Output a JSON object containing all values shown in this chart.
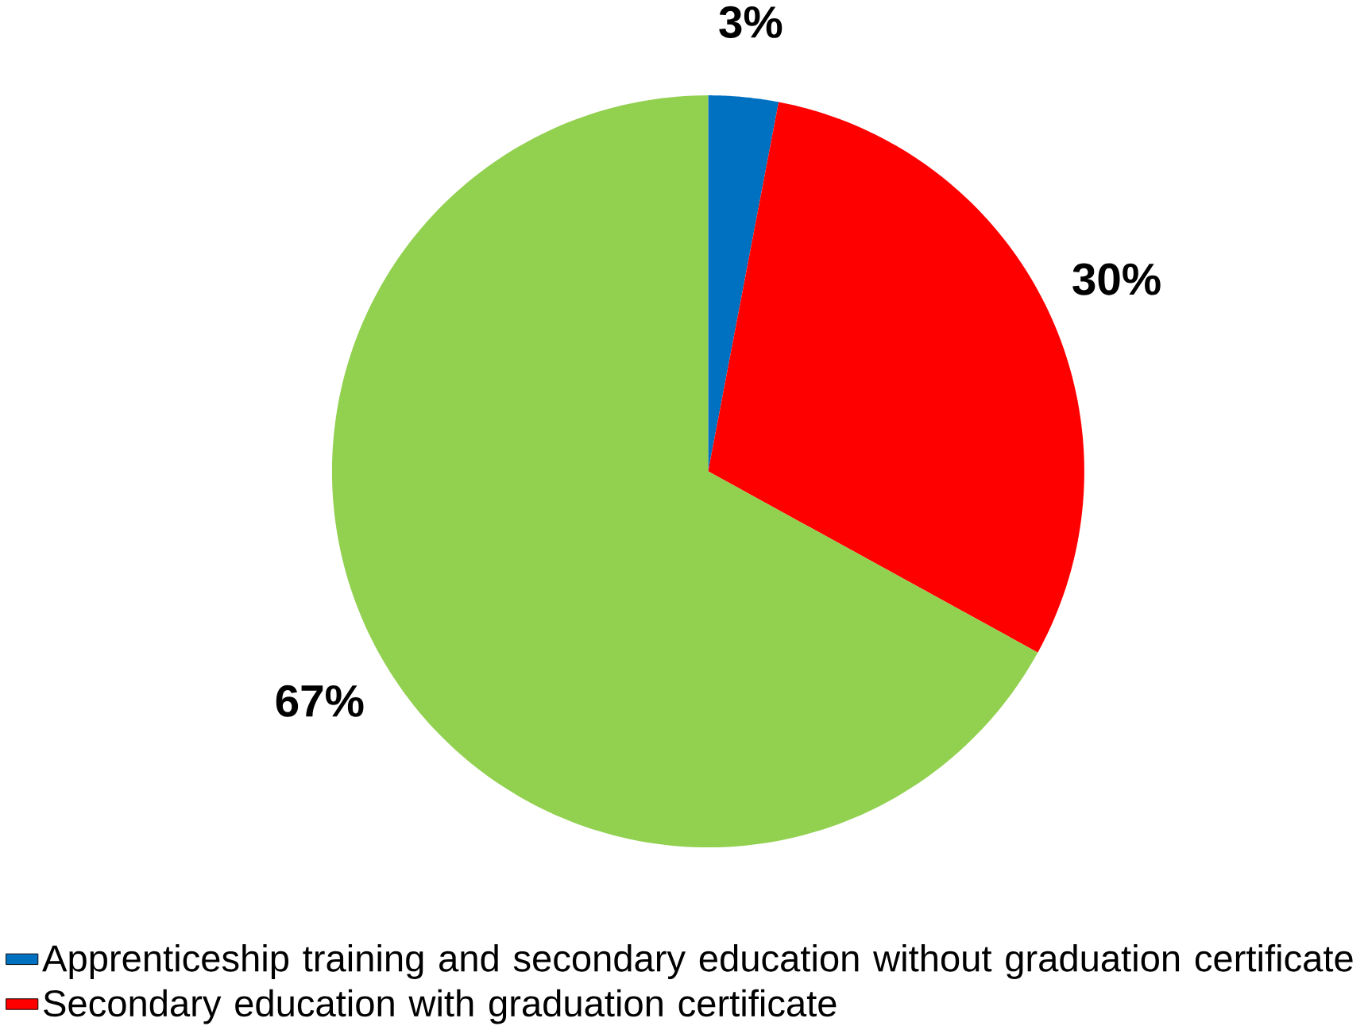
{
  "chart_data": {
    "type": "pie",
    "categories": [
      "Apprenticeship training and secondary education without graduation certificate",
      "Secondary education with graduation certificate",
      null
    ],
    "values": [
      3,
      30,
      67
    ],
    "colors": [
      "#0070c0",
      "#ff0000",
      "#92d050"
    ],
    "value_labels": [
      "3%",
      "30%",
      "67%"
    ],
    "legend": "bottom"
  }
}
